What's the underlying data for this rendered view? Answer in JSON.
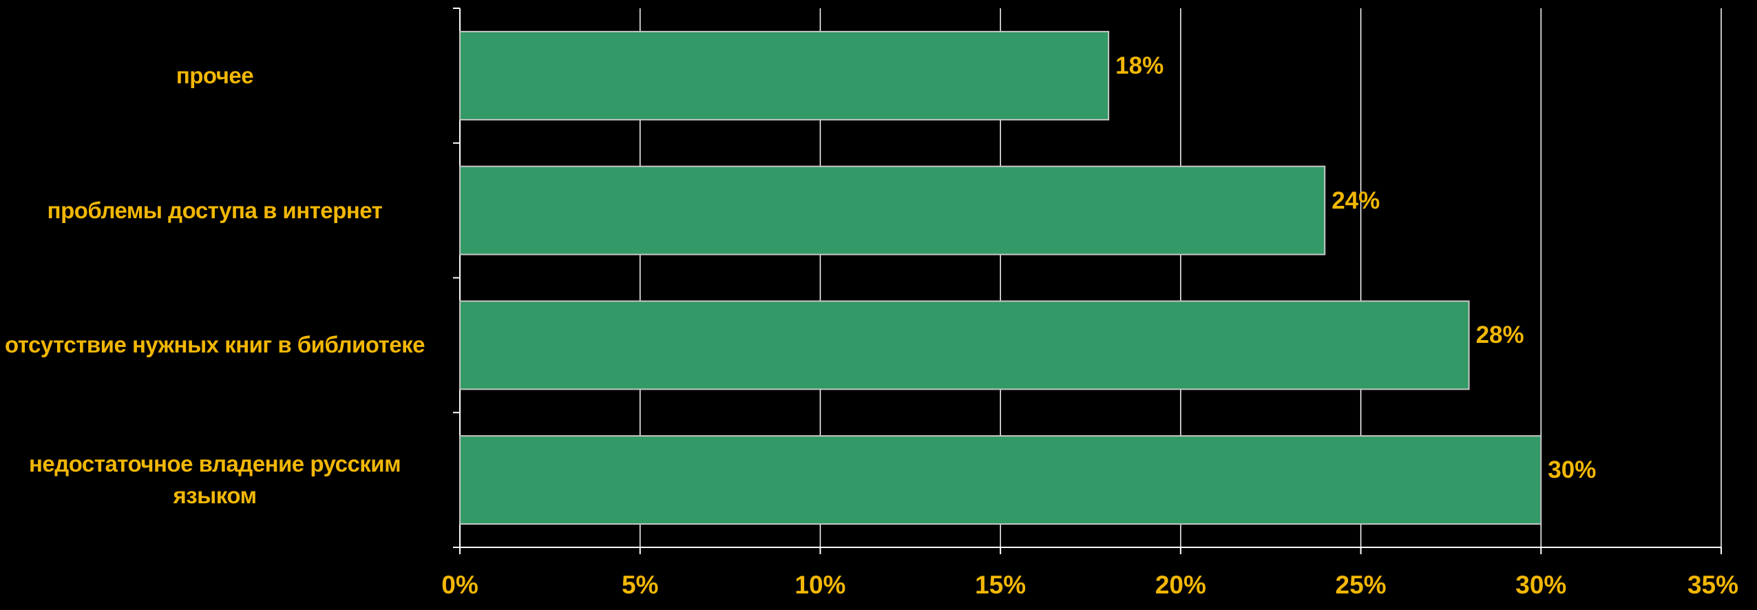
{
  "chart_data": {
    "type": "bar",
    "orientation": "horizontal",
    "categories": [
      "прочее",
      "проблемы доступа в интернет",
      "отсутствие нужных книг в библиотеке",
      "недостаточное владение русским языком"
    ],
    "values": [
      18,
      24,
      28,
      30
    ],
    "data_labels": [
      "18%",
      "24%",
      "28%",
      "30%"
    ],
    "x_ticks": [
      "0%",
      "5%",
      "10%",
      "15%",
      "20%",
      "25%",
      "30%",
      "35%"
    ],
    "xlim": [
      0,
      35
    ],
    "grid": "vertical",
    "legend": "none",
    "colors": {
      "background": "#000000",
      "bar": "#339966",
      "bar_border": "#c8c8c8",
      "grid": "#ffffff",
      "text": "#f2b705"
    }
  }
}
